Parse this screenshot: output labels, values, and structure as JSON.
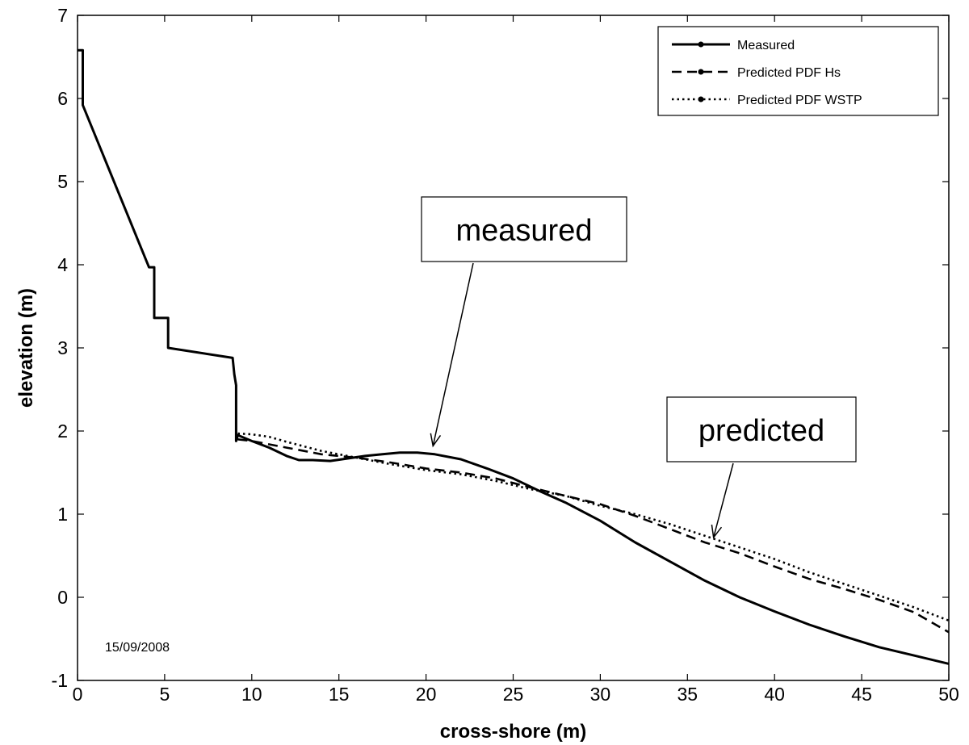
{
  "chart_data": {
    "type": "line",
    "title": "",
    "xlabel": "cross-shore (m)",
    "ylabel": "elevation (m)",
    "xlim": [
      0,
      50
    ],
    "ylim": [
      -1,
      7
    ],
    "xticks": [
      0,
      5,
      10,
      15,
      20,
      25,
      30,
      35,
      40,
      45,
      50
    ],
    "yticks": [
      -1,
      0,
      1,
      2,
      3,
      4,
      5,
      6,
      7
    ],
    "grid": false,
    "legend_position": "top-right",
    "series": [
      {
        "name": "Measured",
        "style": "solid",
        "x": [
          0,
          0.3,
          0.3,
          4.1,
          4.4,
          4.4,
          5.2,
          5.2,
          8.9,
          9.0,
          9.1,
          9.1,
          9.2,
          10,
          11,
          12,
          12.7,
          13.5,
          14.5,
          15.5,
          16.5,
          17.5,
          18.5,
          19.5,
          20.5,
          22,
          23.5,
          25,
          26.5,
          28,
          30,
          32,
          34,
          36,
          38,
          40,
          42,
          44,
          46,
          48,
          50
        ],
        "y": [
          6.58,
          6.58,
          5.92,
          3.97,
          3.97,
          3.36,
          3.36,
          3.0,
          2.88,
          2.68,
          2.55,
          1.88,
          1.95,
          1.88,
          1.8,
          1.7,
          1.65,
          1.65,
          1.64,
          1.67,
          1.7,
          1.72,
          1.74,
          1.74,
          1.72,
          1.66,
          1.55,
          1.43,
          1.28,
          1.14,
          0.92,
          0.66,
          0.43,
          0.2,
          0.0,
          -0.17,
          -0.33,
          -0.47,
          -0.6,
          -0.7,
          -0.8
        ]
      },
      {
        "name": "Predicted PDF Hs",
        "style": "dashed",
        "x": [
          9.2,
          10,
          12,
          14,
          16,
          18,
          20,
          22,
          24,
          26,
          28,
          30,
          32,
          34,
          36,
          38,
          40,
          42,
          44,
          46,
          48,
          50
        ],
        "y": [
          1.9,
          1.88,
          1.8,
          1.72,
          1.68,
          1.62,
          1.55,
          1.5,
          1.43,
          1.32,
          1.22,
          1.12,
          0.98,
          0.82,
          0.66,
          0.53,
          0.37,
          0.22,
          0.1,
          -0.03,
          -0.18,
          -0.42
        ]
      },
      {
        "name": "Predicted PDF WSTP",
        "style": "dotted",
        "x": [
          9.2,
          10,
          11,
          12,
          14,
          16,
          18,
          20,
          22,
          24,
          26,
          28,
          30,
          32,
          34,
          36,
          38,
          40,
          42,
          44,
          46,
          48,
          50
        ],
        "y": [
          1.97,
          1.96,
          1.93,
          1.87,
          1.76,
          1.68,
          1.6,
          1.53,
          1.48,
          1.4,
          1.3,
          1.22,
          1.1,
          1.0,
          0.88,
          0.74,
          0.6,
          0.46,
          0.3,
          0.16,
          0.02,
          -0.12,
          -0.28
        ]
      }
    ],
    "annotations": [
      {
        "text": "measured",
        "target_x": 20.4,
        "target_y": 1.82
      },
      {
        "text": "predicted",
        "target_x": 36.5,
        "target_y": 0.72
      },
      {
        "text": "15/09/2008"
      }
    ]
  },
  "colors": {
    "line": "#000000",
    "background": "#ffffff"
  }
}
